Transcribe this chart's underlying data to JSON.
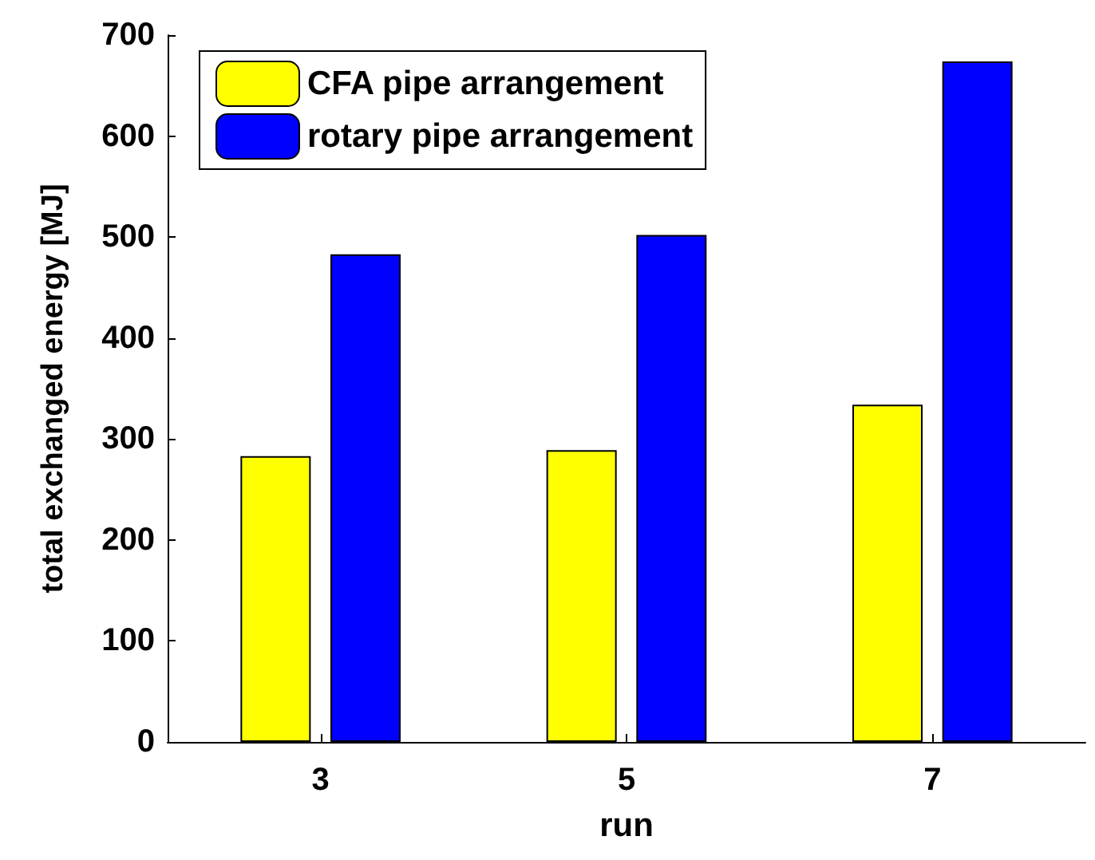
{
  "chart_data": {
    "type": "bar",
    "xlabel": "run",
    "ylabel": "total exchanged energy [MJ]",
    "categories": [
      "3",
      "5",
      "7"
    ],
    "series": [
      {
        "name": "CFA pipe arrangement",
        "color": "#ffff00",
        "values": [
          283,
          289,
          334
        ]
      },
      {
        "name": "rotary pipe arrangement",
        "color": "#0000ff",
        "values": [
          483,
          502,
          674
        ]
      }
    ],
    "ylim": [
      0,
      700
    ],
    "yticks": [
      0,
      100,
      200,
      300,
      400,
      500,
      600,
      700
    ],
    "grid": false,
    "legend": "top left"
  }
}
